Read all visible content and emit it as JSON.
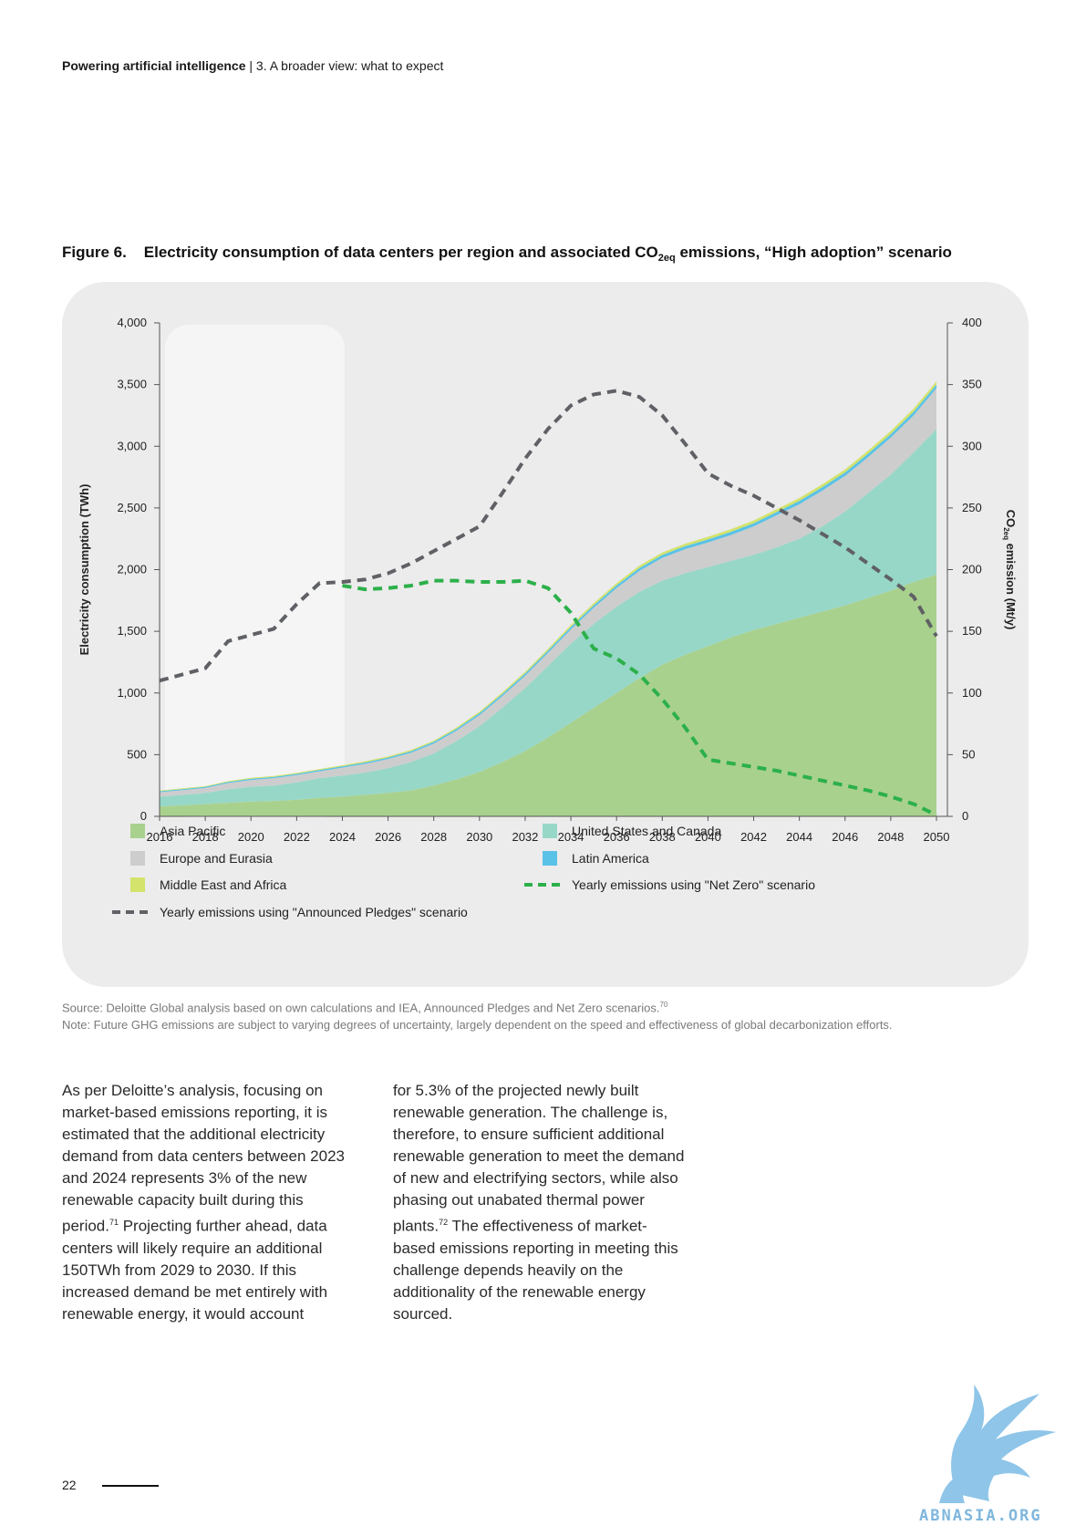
{
  "header": {
    "doc_title": "Powering artificial intelligence",
    "separator": " | ",
    "section": "3. A broader view: what to expect"
  },
  "figure": {
    "label": "Figure 6.",
    "title_main": "Electricity consumption of data centers per region and associated CO",
    "title_sub": "2eq",
    "title_end": " emissions, “High adoption” scenario"
  },
  "chart_data": {
    "type": "area",
    "x": [
      2016,
      2017,
      2018,
      2019,
      2020,
      2021,
      2022,
      2023,
      2024,
      2025,
      2026,
      2027,
      2028,
      2029,
      2030,
      2031,
      2032,
      2033,
      2034,
      2035,
      2036,
      2037,
      2038,
      2039,
      2040,
      2041,
      2042,
      2043,
      2044,
      2045,
      2046,
      2047,
      2048,
      2049,
      2050
    ],
    "x_ticks": [
      "2016",
      "2018",
      "2020",
      "2022",
      "2024",
      "2026",
      "2028",
      "2030",
      "2032",
      "2034",
      "2036",
      "2038",
      "2040",
      "2042",
      "2044",
      "2046",
      "2048",
      "2050"
    ],
    "y_ticks_left": [
      "0",
      "500",
      "1,000",
      "1,500",
      "2,000",
      "2,500",
      "3,000",
      "3,500",
      "4,000"
    ],
    "y_ticks_right": [
      "0",
      "50",
      "100",
      "150",
      "200",
      "250",
      "300",
      "350",
      "400"
    ],
    "ylabel_left": "Electricity consumption (TWh)",
    "ylabel_right_main": "CO",
    "ylabel_right_sub": "2eq",
    "ylabel_right_end": " emission (Mt/y)",
    "ylim_left": [
      0,
      4000
    ],
    "ylim_right": [
      0,
      400
    ],
    "stacked_series": [
      {
        "name": "Asia Pacific",
        "color": "#a9d18e",
        "values": [
          80,
          90,
          100,
          110,
          120,
          125,
          135,
          150,
          160,
          175,
          190,
          210,
          250,
          300,
          360,
          440,
          530,
          640,
          760,
          880,
          1000,
          1120,
          1230,
          1310,
          1380,
          1450,
          1510,
          1560,
          1610,
          1660,
          1710,
          1770,
          1830,
          1900,
          1960
        ]
      },
      {
        "name": "United States and Canada",
        "color": "#97d7c8",
        "values": [
          80,
          85,
          90,
          110,
          120,
          125,
          140,
          160,
          170,
          180,
          200,
          230,
          260,
          310,
          370,
          440,
          510,
          580,
          640,
          680,
          700,
          700,
          680,
          660,
          640,
          620,
          610,
          620,
          640,
          690,
          760,
          850,
          940,
          1050,
          1180
        ]
      },
      {
        "name": "Europe and Eurasia",
        "color": "#cdcdcd",
        "values": [
          35,
          38,
          40,
          50,
          55,
          60,
          60,
          55,
          65,
          70,
          75,
          75,
          80,
          85,
          90,
          95,
          100,
          105,
          115,
          130,
          150,
          170,
          185,
          195,
          200,
          210,
          230,
          260,
          280,
          290,
          290,
          290,
          300,
          300,
          330
        ]
      },
      {
        "name": "Latin America",
        "color": "#5bc2e7",
        "values": [
          8,
          8,
          9,
          9,
          10,
          10,
          10,
          11,
          11,
          12,
          12,
          13,
          14,
          15,
          16,
          17,
          18,
          19,
          20,
          21,
          22,
          23,
          24,
          25,
          25,
          26,
          26,
          27,
          27,
          28,
          28,
          29,
          29,
          30,
          30
        ]
      },
      {
        "name": "Middle East and Africa",
        "color": "#d3e36b",
        "values": [
          6,
          6,
          6,
          7,
          7,
          7,
          8,
          8,
          8,
          9,
          9,
          10,
          10,
          11,
          12,
          13,
          14,
          15,
          16,
          17,
          18,
          19,
          20,
          20,
          21,
          21,
          22,
          22,
          23,
          23,
          24,
          24,
          25,
          25,
          26
        ]
      }
    ],
    "line_series": [
      {
        "name": "Yearly emissions using \"Announced Pledges\" scenario",
        "color": "#5f6166",
        "axis": "right",
        "x": [
          2016,
          2018,
          2019,
          2021,
          2022,
          2023,
          2024,
          2025,
          2026,
          2027,
          2028,
          2029,
          2030,
          2031,
          2032,
          2033,
          2034,
          2035,
          2036,
          2037,
          2038,
          2039,
          2040,
          2041,
          2042,
          2043,
          2044,
          2045,
          2046,
          2047,
          2048,
          2049,
          2050
        ],
        "values": [
          110,
          120,
          142,
          152,
          172,
          189,
          190,
          192,
          197,
          205,
          215,
          225,
          235,
          262,
          290,
          314,
          333,
          342,
          345,
          340,
          325,
          302,
          278,
          268,
          260,
          250,
          240,
          229,
          218,
          205,
          192,
          178,
          146
        ]
      },
      {
        "name": "Yearly emissions using \"Net Zero\" scenario",
        "color": "#2cb04a",
        "axis": "right",
        "x": [
          2024,
          2025,
          2026,
          2027,
          2028,
          2029,
          2030,
          2031,
          2032,
          2033,
          2034,
          2035,
          2036,
          2037,
          2038,
          2039,
          2040,
          2041,
          2042,
          2043,
          2044,
          2045,
          2046,
          2047,
          2048,
          2049,
          2050
        ],
        "values": [
          187,
          184,
          185,
          187,
          191,
          191,
          190,
          190,
          191,
          185,
          165,
          136,
          128,
          115,
          95,
          72,
          46,
          43,
          40,
          37,
          33,
          29,
          25,
          21,
          16,
          10,
          1
        ]
      }
    ],
    "legend": [
      {
        "label": "Asia Pacific",
        "swatch": "box",
        "color": "#a9d18e"
      },
      {
        "label": "United States and Canada",
        "swatch": "box",
        "color": "#97d7c8"
      },
      {
        "label": "Europe and Eurasia",
        "swatch": "box",
        "color": "#cdcdcd"
      },
      {
        "label": "Latin America",
        "swatch": "box",
        "color": "#5bc2e7"
      },
      {
        "label": "Middle East and Africa",
        "swatch": "box",
        "color": "#d3e36b"
      },
      {
        "label": "Yearly emissions using \"Net Zero\" scenario",
        "swatch": "dash",
        "color": "#2cb04a"
      },
      {
        "label": "Yearly emissions using \"Announced Pledges\" scenario",
        "swatch": "dash",
        "color": "#5f6166"
      }
    ]
  },
  "source": {
    "line1": "Source: Deloitte Global analysis based on own calculations and IEA, Announced Pledges and Net Zero scenarios.",
    "line1_ref": "70",
    "line2": "Note: Future GHG emissions are subject to varying degrees of uncertainty, largely dependent on the speed and effectiveness of global decarbonization efforts."
  },
  "body": {
    "col1_a": "As per Deloitte’s analysis, focusing on market-based emissions reporting, it is estimated that the additional electricity demand from data centers between 2023 and 2024 represents 3% of the new renewable capacity built during this period.",
    "col1_ref": "71",
    "col1_b": " Projecting further ahead, data centers will likely require an additional 150TWh from 2029 to 2030. If this increased demand be met entirely with renewable energy, it would account",
    "col2_a": "for 5.3% of the projected newly built renewable generation. The challenge is, therefore, to ensure sufficient additional renewable generation to meet the demand of new and electrifying sectors, while also phasing out unabated thermal power plants.",
    "col2_ref": "72",
    "col2_b": " The effectiveness of market-based emissions reporting in meeting this challenge depends heavily on the additionality of the renewable energy sourced."
  },
  "footer": {
    "page_number": "22"
  },
  "watermark": {
    "text": "ABNASIA.ORG"
  }
}
